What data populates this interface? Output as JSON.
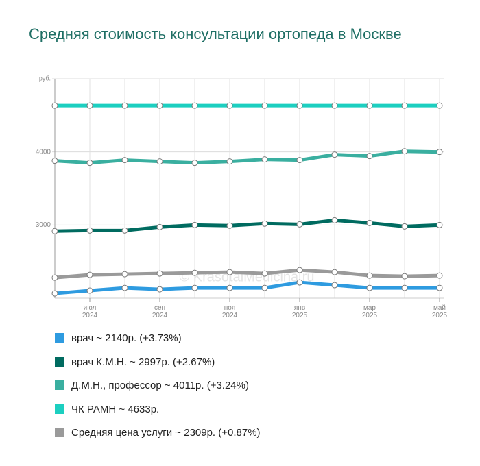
{
  "chart_data": {
    "type": "line",
    "title": "Средняя стоимость консультации ортопеда в Москве",
    "watermark": "© KrasotaiMedicina.ru",
    "categories": [
      null,
      "июл\n2024",
      null,
      "сен\n2024",
      null,
      "ноя\n2024",
      null,
      "янв\n2025",
      null,
      "мар\n2025",
      null,
      "май\n2025"
    ],
    "ylim": [
      2000,
      5000
    ],
    "yticks": [
      3000,
      4000,
      {
        "value": 5000,
        "label": "руб."
      }
    ],
    "grid": true,
    "series": [
      {
        "name": "врач ~ 2140р. (+3.73%)",
        "color": "#2e9be0",
        "values": [
          2065,
          2103,
          2140,
          2121,
          2140,
          2140,
          2140,
          2215,
          2178,
          2140,
          2140,
          2140
        ]
      },
      {
        "name": "врач К.М.Н. ~ 2997р. (+2.67%)",
        "color": "#006b60",
        "values": [
          2916,
          2925,
          2925,
          2972,
          3000,
          2991,
          3019,
          3009,
          3065,
          3028,
          2981,
          3000
        ]
      },
      {
        "name": "Д.М.Н., профессор ~ 4011р. (+3.24%)",
        "color": "#3aafa0",
        "values": [
          3879,
          3850,
          3888,
          3869,
          3850,
          3869,
          3897,
          3888,
          3963,
          3944,
          4009,
          4000
        ]
      },
      {
        "name": "ЧК РАМН ~ 4633р.",
        "color": "#1ccfc0",
        "values": [
          4633,
          4633,
          4633,
          4633,
          4633,
          4633,
          4633,
          4633,
          4633,
          4633,
          4633,
          4633
        ]
      },
      {
        "name": "Средняя цена услуги ~ 2309р. (+0.87%)",
        "color": "#9a9a9a",
        "values": [
          2280,
          2318,
          2327,
          2336,
          2346,
          2355,
          2336,
          2383,
          2355,
          2308,
          2299,
          2308
        ]
      }
    ]
  }
}
